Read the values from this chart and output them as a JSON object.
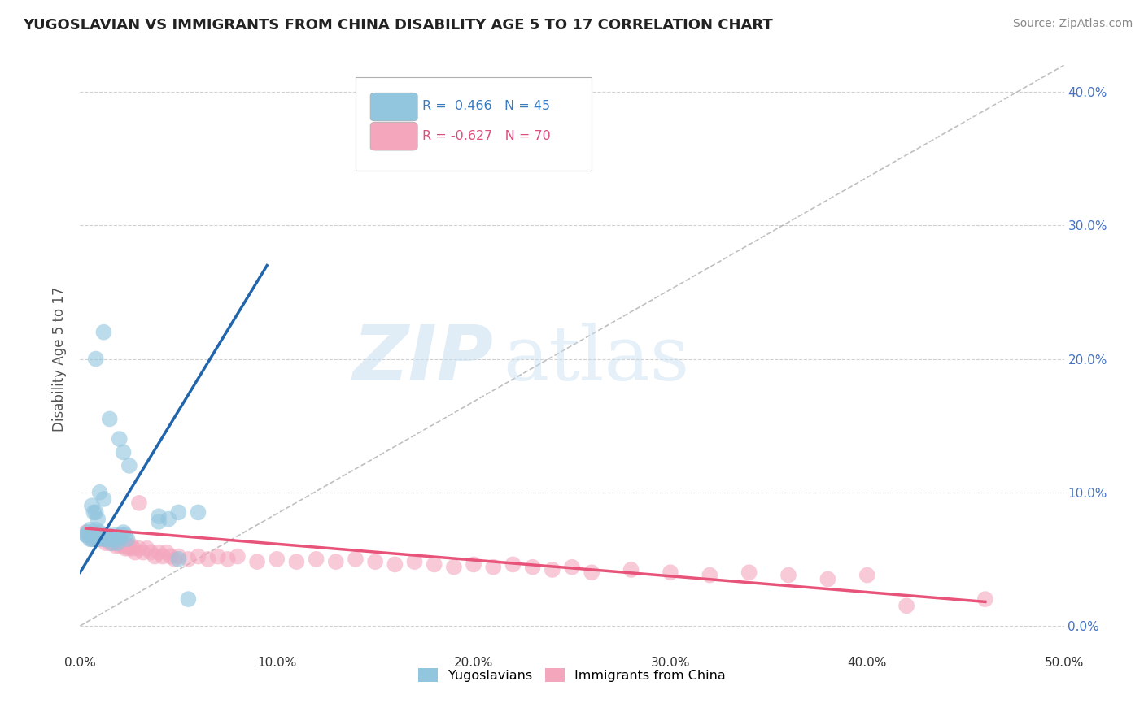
{
  "title": "YUGOSLAVIAN VS IMMIGRANTS FROM CHINA DISABILITY AGE 5 TO 17 CORRELATION CHART",
  "source": "Source: ZipAtlas.com",
  "ylabel": "Disability Age 5 to 17",
  "xlim": [
    0.0,
    0.5
  ],
  "ylim": [
    -0.02,
    0.42
  ],
  "xticks": [
    0.0,
    0.1,
    0.2,
    0.3,
    0.4,
    0.5
  ],
  "xticklabels": [
    "0.0%",
    "10.0%",
    "20.0%",
    "30.0%",
    "40.0%",
    "50.0%"
  ],
  "yticks": [
    0.0,
    0.1,
    0.2,
    0.3,
    0.4
  ],
  "yticklabels_right": [
    "0.0%",
    "10.0%",
    "20.0%",
    "30.0%",
    "40.0%"
  ],
  "legend_r_blue": "R =  0.466",
  "legend_n_blue": "N = 45",
  "legend_r_pink": "R = -0.627",
  "legend_n_pink": "N = 70",
  "watermark_zip": "ZIP",
  "watermark_atlas": "atlas",
  "blue_color": "#92c5de",
  "pink_color": "#f4a6bd",
  "blue_line_color": "#2166ac",
  "pink_line_color": "#e8537a",
  "gray_dash_color": "#b0b0b0",
  "background_color": "#ffffff",
  "grid_color": "#cccccc",
  "blue_scatter": [
    [
      0.003,
      0.068
    ],
    [
      0.005,
      0.072
    ],
    [
      0.006,
      0.065
    ],
    [
      0.007,
      0.068
    ],
    [
      0.008,
      0.072
    ],
    [
      0.009,
      0.065
    ],
    [
      0.01,
      0.07
    ],
    [
      0.011,
      0.068
    ],
    [
      0.012,
      0.065
    ],
    [
      0.013,
      0.065
    ],
    [
      0.014,
      0.068
    ],
    [
      0.015,
      0.065
    ],
    [
      0.016,
      0.062
    ],
    [
      0.017,
      0.065
    ],
    [
      0.018,
      0.068
    ],
    [
      0.019,
      0.062
    ],
    [
      0.02,
      0.065
    ],
    [
      0.021,
      0.068
    ],
    [
      0.022,
      0.07
    ],
    [
      0.023,
      0.068
    ],
    [
      0.024,
      0.065
    ],
    [
      0.003,
      0.068
    ],
    [
      0.004,
      0.07
    ],
    [
      0.005,
      0.065
    ],
    [
      0.006,
      0.068
    ],
    [
      0.007,
      0.065
    ],
    [
      0.012,
      0.22
    ],
    [
      0.008,
      0.2
    ],
    [
      0.015,
      0.155
    ],
    [
      0.02,
      0.14
    ],
    [
      0.022,
      0.13
    ],
    [
      0.025,
      0.12
    ],
    [
      0.01,
      0.1
    ],
    [
      0.012,
      0.095
    ],
    [
      0.006,
      0.09
    ],
    [
      0.007,
      0.085
    ],
    [
      0.008,
      0.085
    ],
    [
      0.009,
      0.08
    ],
    [
      0.06,
      0.085
    ],
    [
      0.05,
      0.085
    ],
    [
      0.04,
      0.082
    ],
    [
      0.04,
      0.078
    ],
    [
      0.045,
      0.08
    ],
    [
      0.05,
      0.05
    ],
    [
      0.055,
      0.02
    ]
  ],
  "pink_scatter": [
    [
      0.003,
      0.07
    ],
    [
      0.005,
      0.068
    ],
    [
      0.006,
      0.065
    ],
    [
      0.007,
      0.068
    ],
    [
      0.008,
      0.065
    ],
    [
      0.009,
      0.068
    ],
    [
      0.01,
      0.065
    ],
    [
      0.011,
      0.068
    ],
    [
      0.012,
      0.065
    ],
    [
      0.013,
      0.062
    ],
    [
      0.014,
      0.065
    ],
    [
      0.015,
      0.062
    ],
    [
      0.016,
      0.065
    ],
    [
      0.017,
      0.062
    ],
    [
      0.018,
      0.06
    ],
    [
      0.019,
      0.062
    ],
    [
      0.02,
      0.06
    ],
    [
      0.021,
      0.062
    ],
    [
      0.022,
      0.06
    ],
    [
      0.023,
      0.058
    ],
    [
      0.024,
      0.06
    ],
    [
      0.025,
      0.058
    ],
    [
      0.026,
      0.06
    ],
    [
      0.027,
      0.058
    ],
    [
      0.028,
      0.055
    ],
    [
      0.03,
      0.058
    ],
    [
      0.032,
      0.055
    ],
    [
      0.034,
      0.058
    ],
    [
      0.036,
      0.055
    ],
    [
      0.038,
      0.052
    ],
    [
      0.04,
      0.055
    ],
    [
      0.042,
      0.052
    ],
    [
      0.044,
      0.055
    ],
    [
      0.046,
      0.052
    ],
    [
      0.048,
      0.05
    ],
    [
      0.05,
      0.052
    ],
    [
      0.055,
      0.05
    ],
    [
      0.06,
      0.052
    ],
    [
      0.065,
      0.05
    ],
    [
      0.07,
      0.052
    ],
    [
      0.075,
      0.05
    ],
    [
      0.08,
      0.052
    ],
    [
      0.09,
      0.048
    ],
    [
      0.1,
      0.05
    ],
    [
      0.11,
      0.048
    ],
    [
      0.12,
      0.05
    ],
    [
      0.13,
      0.048
    ],
    [
      0.14,
      0.05
    ],
    [
      0.15,
      0.048
    ],
    [
      0.16,
      0.046
    ],
    [
      0.17,
      0.048
    ],
    [
      0.18,
      0.046
    ],
    [
      0.19,
      0.044
    ],
    [
      0.2,
      0.046
    ],
    [
      0.21,
      0.044
    ],
    [
      0.22,
      0.046
    ],
    [
      0.23,
      0.044
    ],
    [
      0.24,
      0.042
    ],
    [
      0.25,
      0.044
    ],
    [
      0.03,
      0.092
    ],
    [
      0.26,
      0.04
    ],
    [
      0.28,
      0.042
    ],
    [
      0.3,
      0.04
    ],
    [
      0.32,
      0.038
    ],
    [
      0.34,
      0.04
    ],
    [
      0.36,
      0.038
    ],
    [
      0.38,
      0.035
    ],
    [
      0.4,
      0.038
    ],
    [
      0.42,
      0.015
    ],
    [
      0.46,
      0.02
    ]
  ],
  "blue_line_x": [
    0.0,
    0.095
  ],
  "blue_line_y": [
    0.04,
    0.27
  ],
  "pink_line_x": [
    0.003,
    0.46
  ],
  "pink_line_y": [
    0.073,
    0.018
  ]
}
